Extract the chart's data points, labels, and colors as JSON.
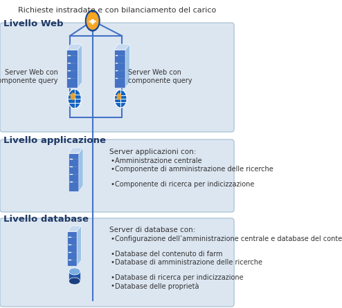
{
  "title": "Richieste instradate e con bilanciamento del carico",
  "bg_color": "#ffffff",
  "tier_bg_color": "#dce6f1",
  "tier_border_color": "#aec6d8",
  "tier_label_color": "#1f3864",
  "web_label": "Livello Web",
  "app_label": "Livello applicazione",
  "db_label": "Livello database",
  "web_server_left_label": "Server Web con\ncomponente query",
  "web_server_right_label": "Server Web con\ncomponente query",
  "app_header": "Server applicazioni con:",
  "app_items": [
    "Amministrazione centrale",
    "Componente di amministrazione delle ricerche",
    "Componente di ricerca per indicizzazione"
  ],
  "db_header": "Server di database con:",
  "db_items": [
    "Configurazione dell’amministrazione centrale e database del contenuto",
    "Database del contenuto di farm",
    "Database di amministrazione delle ricerche",
    "Database di ricerca per indicizzazione",
    "Database delle proprietà"
  ],
  "line_color": "#4472c4",
  "text_color": "#333333",
  "server_dark": "#1e4d9b",
  "server_mid": "#4472c4",
  "server_light": "#9dc3e6",
  "server_lighter": "#c5daf0"
}
